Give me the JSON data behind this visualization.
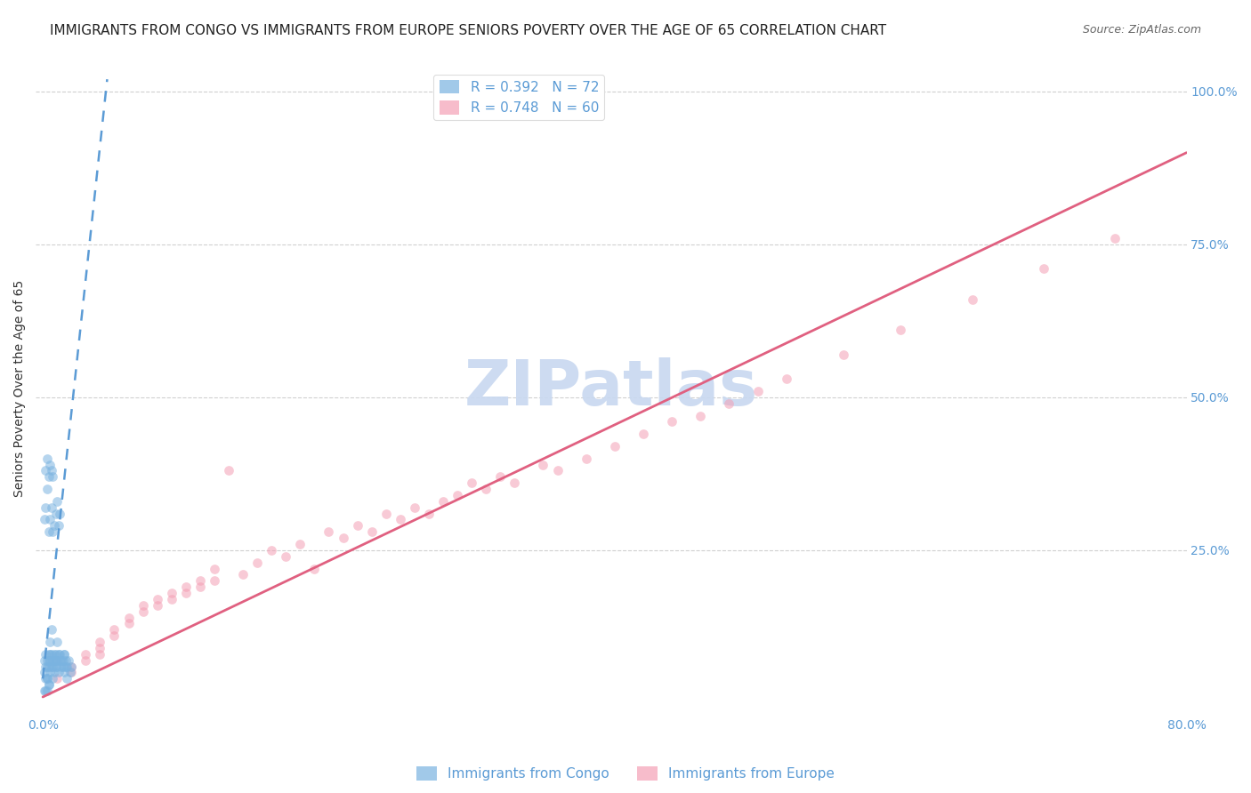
{
  "title": "IMMIGRANTS FROM CONGO VS IMMIGRANTS FROM EUROPE SENIORS POVERTY OVER THE AGE OF 65 CORRELATION CHART",
  "source": "Source: ZipAtlas.com",
  "xlabel_bottom": "",
  "ylabel": "Seniors Poverty Over the Age of 65",
  "xlim": [
    0.0,
    0.8
  ],
  "ylim": [
    0.0,
    1.05
  ],
  "xticks": [
    0.0,
    0.1,
    0.2,
    0.3,
    0.4,
    0.5,
    0.6,
    0.7,
    0.8
  ],
  "xticklabels": [
    "0.0%",
    "",
    "",
    "",
    "",
    "",
    "",
    "",
    "80.0%"
  ],
  "yticks_right": [
    0.25,
    0.5,
    0.75,
    1.0
  ],
  "ytick_right_labels": [
    "25.0%",
    "50.0%",
    "75.0%",
    "100.0%"
  ],
  "legend_congo_R": "R = 0.392",
  "legend_congo_N": "N = 72",
  "legend_europe_R": "R = 0.748",
  "legend_europe_N": "N = 60",
  "color_congo": "#7ab3e0",
  "color_europe": "#f4a0b5",
  "color_congo_line": "#5b9bd5",
  "color_europe_line": "#e06080",
  "color_axis_labels": "#5b9bd5",
  "watermark_text": "ZIPatlas",
  "watermark_color": "#c8d8f0",
  "background_color": "#ffffff",
  "grid_color": "#d0d0d0",
  "legend_label_congo": "Immigrants from Congo",
  "legend_label_europe": "Immigrants from Europe",
  "congo_x": [
    0.001,
    0.002,
    0.003,
    0.003,
    0.004,
    0.004,
    0.005,
    0.005,
    0.005,
    0.006,
    0.006,
    0.007,
    0.007,
    0.008,
    0.008,
    0.009,
    0.009,
    0.01,
    0.01,
    0.011,
    0.012,
    0.013,
    0.014,
    0.015,
    0.015,
    0.016,
    0.017,
    0.018,
    0.019,
    0.02,
    0.001,
    0.002,
    0.003,
    0.004,
    0.005,
    0.006,
    0.007,
    0.008,
    0.009,
    0.01,
    0.011,
    0.012,
    0.002,
    0.003,
    0.004,
    0.005,
    0.006,
    0.007,
    0.001,
    0.002,
    0.003,
    0.004,
    0.005,
    0.006,
    0.007,
    0.008,
    0.009,
    0.01,
    0.011,
    0.012,
    0.013,
    0.014,
    0.015,
    0.016,
    0.017,
    0.002,
    0.003,
    0.004,
    0.001,
    0.002,
    0.003,
    0.004
  ],
  "congo_y": [
    0.05,
    0.06,
    0.07,
    0.04,
    0.08,
    0.06,
    0.1,
    0.05,
    0.07,
    0.12,
    0.08,
    0.06,
    0.04,
    0.07,
    0.05,
    0.08,
    0.06,
    0.1,
    0.07,
    0.05,
    0.08,
    0.07,
    0.06,
    0.08,
    0.05,
    0.06,
    0.04,
    0.07,
    0.05,
    0.06,
    0.3,
    0.32,
    0.35,
    0.28,
    0.3,
    0.32,
    0.28,
    0.29,
    0.31,
    0.33,
    0.29,
    0.31,
    0.38,
    0.4,
    0.37,
    0.39,
    0.38,
    0.37,
    0.07,
    0.08,
    0.06,
    0.07,
    0.08,
    0.06,
    0.07,
    0.08,
    0.07,
    0.06,
    0.08,
    0.07,
    0.06,
    0.07,
    0.08,
    0.07,
    0.06,
    0.04,
    0.04,
    0.03,
    0.02,
    0.02,
    0.02,
    0.03
  ],
  "europe_x": [
    0.01,
    0.02,
    0.02,
    0.03,
    0.03,
    0.04,
    0.04,
    0.04,
    0.05,
    0.05,
    0.06,
    0.06,
    0.07,
    0.07,
    0.08,
    0.08,
    0.09,
    0.09,
    0.1,
    0.1,
    0.11,
    0.11,
    0.12,
    0.12,
    0.13,
    0.14,
    0.15,
    0.16,
    0.17,
    0.18,
    0.19,
    0.2,
    0.21,
    0.22,
    0.23,
    0.24,
    0.25,
    0.26,
    0.27,
    0.28,
    0.29,
    0.3,
    0.31,
    0.32,
    0.33,
    0.35,
    0.36,
    0.38,
    0.4,
    0.42,
    0.44,
    0.46,
    0.48,
    0.5,
    0.52,
    0.56,
    0.6,
    0.65,
    0.7,
    0.75
  ],
  "europe_y": [
    0.04,
    0.06,
    0.05,
    0.08,
    0.07,
    0.1,
    0.09,
    0.08,
    0.12,
    0.11,
    0.14,
    0.13,
    0.16,
    0.15,
    0.17,
    0.16,
    0.18,
    0.17,
    0.19,
    0.18,
    0.2,
    0.19,
    0.22,
    0.2,
    0.38,
    0.21,
    0.23,
    0.25,
    0.24,
    0.26,
    0.22,
    0.28,
    0.27,
    0.29,
    0.28,
    0.31,
    0.3,
    0.32,
    0.31,
    0.33,
    0.34,
    0.36,
    0.35,
    0.37,
    0.36,
    0.39,
    0.38,
    0.4,
    0.42,
    0.44,
    0.46,
    0.47,
    0.49,
    0.51,
    0.53,
    0.57,
    0.61,
    0.66,
    0.71,
    0.76
  ],
  "title_fontsize": 11,
  "source_fontsize": 9,
  "axis_label_fontsize": 10,
  "tick_fontsize": 10,
  "legend_fontsize": 11,
  "watermark_fontsize": 52,
  "dot_size": 60,
  "dot_alpha": 0.55
}
